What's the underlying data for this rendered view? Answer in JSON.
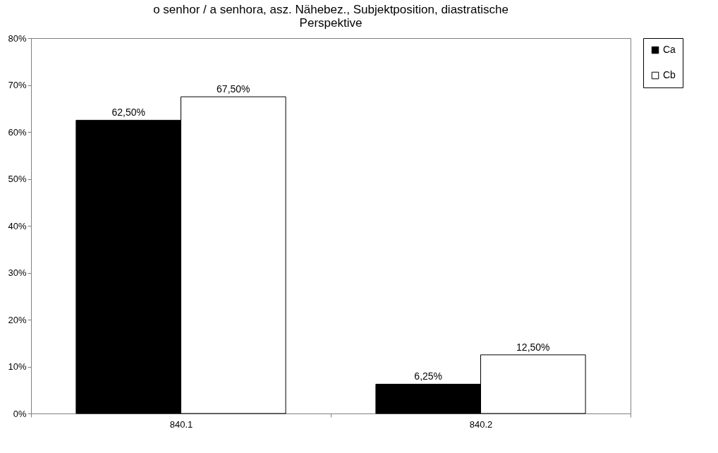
{
  "chart_data": {
    "type": "bar",
    "title": "o senhor / a senhora, asz. Nähebez., Subjektposition, diastratische Perspektive",
    "categories": [
      "840.1",
      "840.2"
    ],
    "series": [
      {
        "name": "Ca",
        "color": "#000000",
        "values": [
          62.5,
          6.25
        ],
        "value_labels": [
          "62,50%",
          "6,25%"
        ]
      },
      {
        "name": "Cb",
        "color": "#ffffff",
        "values": [
          67.5,
          12.5
        ],
        "value_labels": [
          "67,50%",
          "12,50%"
        ]
      }
    ],
    "ylim": [
      0,
      80
    ],
    "yticks": [
      {
        "value": 0,
        "label": "0%"
      },
      {
        "value": 10,
        "label": "10%"
      },
      {
        "value": 20,
        "label": "20%"
      },
      {
        "value": 30,
        "label": "30%"
      },
      {
        "value": 40,
        "label": "40%"
      },
      {
        "value": 50,
        "label": "50%"
      },
      {
        "value": 60,
        "label": "60%"
      },
      {
        "value": 70,
        "label": "70%"
      },
      {
        "value": 80,
        "label": "80%"
      }
    ],
    "grid": false,
    "legend": "right"
  }
}
